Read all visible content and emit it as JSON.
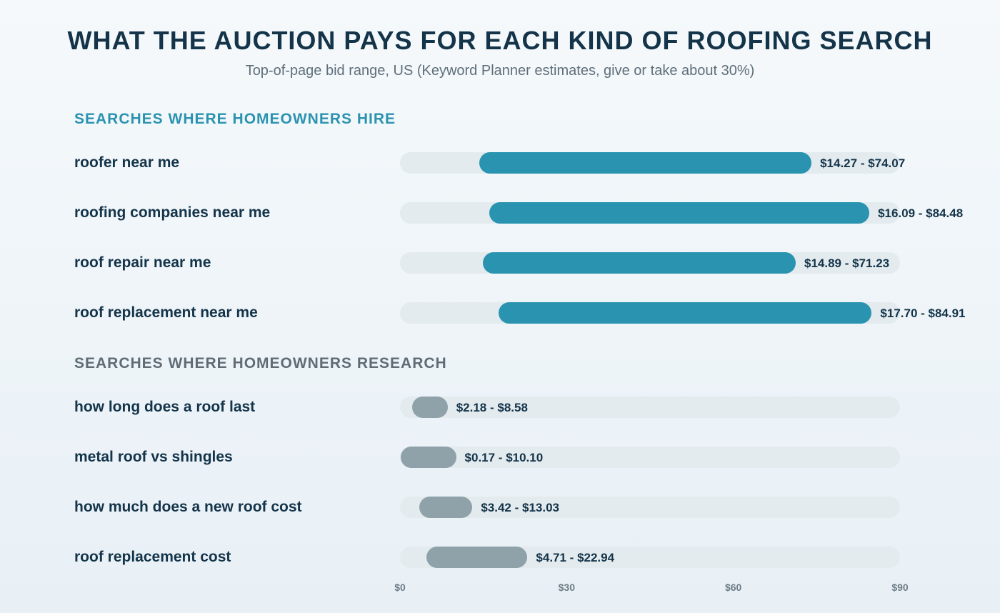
{
  "chart_data": {
    "type": "bar",
    "orientation": "horizontal",
    "subtype": "range",
    "title": "WHAT THE AUCTION PAYS FOR EACH KIND OF ROOFING SEARCH",
    "subtitle": "Top-of-page bid range, US (Keyword Planner estimates, give or take about 30%)",
    "xlim": [
      0,
      90
    ],
    "ticks": [
      {
        "value": 0,
        "label": "$0"
      },
      {
        "value": 30,
        "label": "$30"
      },
      {
        "value": 60,
        "label": "$60"
      },
      {
        "value": 90,
        "label": "$90"
      }
    ],
    "grid": false,
    "groups": [
      {
        "name": "SEARCHES WHERE HOMEOWNERS HIRE",
        "kind": "hire",
        "color": "#2a94b0",
        "header_color": "#2b93b0",
        "rows": [
          {
            "label": "roofer near me",
            "low": 14.27,
            "high": 74.07,
            "range_label": "$14.27 - $74.07"
          },
          {
            "label": "roofing companies near me",
            "low": 16.09,
            "high": 84.48,
            "range_label": "$16.09 - $84.48"
          },
          {
            "label": "roof repair near me",
            "low": 14.89,
            "high": 71.23,
            "range_label": "$14.89 - $71.23"
          },
          {
            "label": "roof replacement near me",
            "low": 17.7,
            "high": 84.91,
            "range_label": "$17.70 - $84.91"
          }
        ]
      },
      {
        "name": "SEARCHES WHERE HOMEOWNERS RESEARCH",
        "kind": "research",
        "color": "#8fa2a9",
        "header_color": "#5f6c75",
        "rows": [
          {
            "label": "how long does a roof last",
            "low": 2.18,
            "high": 8.58,
            "range_label": "$2.18 - $8.58"
          },
          {
            "label": "metal roof vs shingles",
            "low": 0.17,
            "high": 10.1,
            "range_label": "$0.17 - $10.10"
          },
          {
            "label": "how much does a new roof cost",
            "low": 3.42,
            "high": 13.03,
            "range_label": "$3.42 - $13.03"
          },
          {
            "label": "roof replacement cost",
            "low": 4.71,
            "high": 22.94,
            "range_label": "$4.71 - $22.94"
          }
        ]
      }
    ]
  }
}
